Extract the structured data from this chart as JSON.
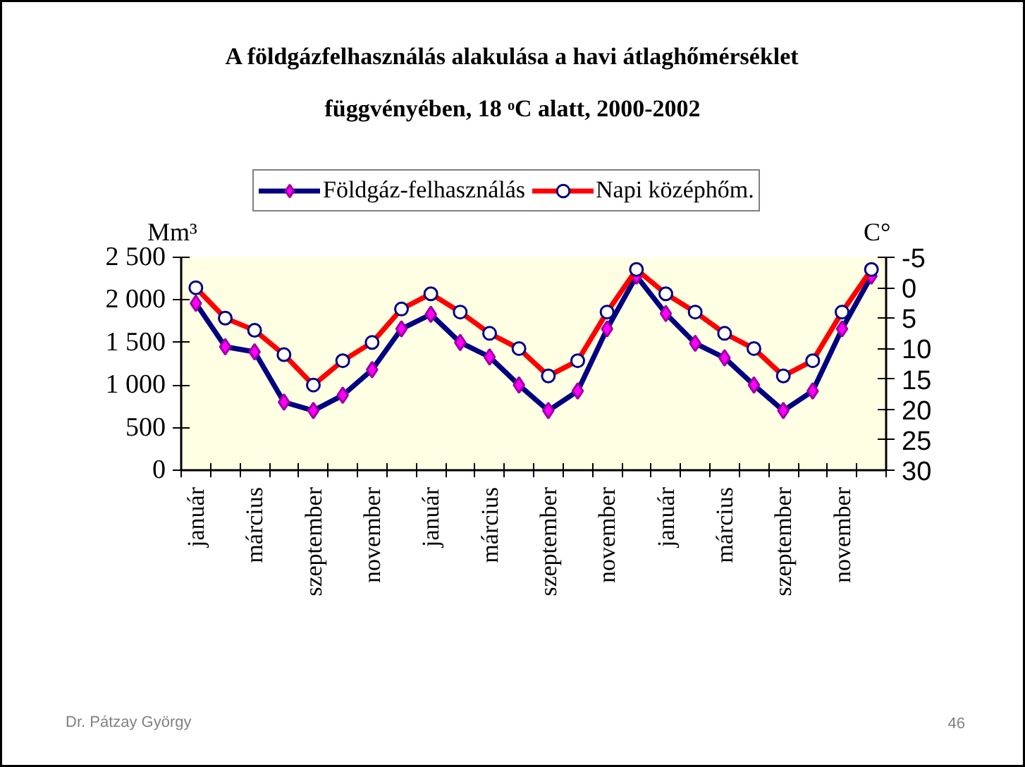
{
  "chart_data": {
    "type": "line",
    "title": "A földgázfelhasználás alakulása a havi átlaghőmérséklet függvényében, 18 ᵒC alatt, 2000-2002",
    "categories": [
      "január",
      null,
      "március",
      null,
      "szeptember",
      null,
      "november",
      null,
      "január",
      null,
      "március",
      null,
      "szeptember",
      null,
      "november",
      null,
      "január",
      null,
      "március",
      null,
      "szeptember",
      null,
      "november",
      null
    ],
    "series": [
      {
        "name": "Földgáz-felhasználás",
        "color": "#000080",
        "marker": "diamond",
        "values": [
          1960,
          1450,
          1390,
          800,
          700,
          880,
          1180,
          1660,
          1830,
          1500,
          1330,
          1000,
          700,
          930,
          1660,
          2280,
          1840,
          1490,
          1320,
          1000,
          700,
          930,
          1660,
          2280
        ]
      },
      {
        "name": "Napi középhőm.",
        "color": "#ff0000",
        "marker": "circle",
        "axis": "y2",
        "values": [
          0,
          5,
          7,
          11,
          16,
          12,
          9,
          3.5,
          1,
          4,
          7.5,
          10,
          14.5,
          12,
          4,
          -3,
          1,
          4,
          7.5,
          10,
          14.5,
          12,
          4,
          -3
        ]
      }
    ],
    "ylabel": "Mm³",
    "y2label": "C°",
    "ylim": [
      0,
      2500
    ],
    "yticks": [
      0,
      500,
      {
        "value": 1000,
        "label": "1 000"
      },
      {
        "value": 1500,
        "label": "1 500"
      },
      {
        "value": 2000,
        "label": "2 000"
      },
      {
        "value": 2500,
        "label": "2 500"
      }
    ],
    "y2lim": [
      30,
      -5
    ],
    "y2ticks": [
      -5,
      0,
      5,
      10,
      15,
      20,
      25,
      30
    ],
    "grid": false,
    "legend": "top",
    "line_style": "solid",
    "annotations": [
      "Dr. Pátzay György",
      "46"
    ]
  }
}
